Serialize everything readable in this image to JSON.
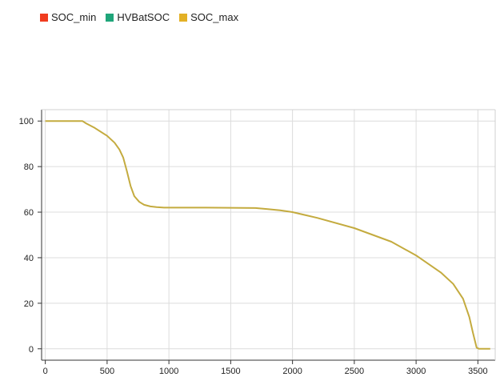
{
  "legend": [
    {
      "label": "SOC_min",
      "color": "#f03c1f"
    },
    {
      "label": "HVBatSOC",
      "color": "#1fa57a"
    },
    {
      "label": "SOC_max",
      "color": "#e3b126"
    }
  ],
  "chart_data": {
    "type": "line",
    "xlim": [
      -30,
      3640
    ],
    "ylim": [
      -5,
      105
    ],
    "x_ticks": [
      0,
      500,
      1000,
      1500,
      2000,
      2500,
      3000,
      3500
    ],
    "y_ticks": [
      0,
      20,
      40,
      60,
      80,
      100
    ],
    "grid": true,
    "legend_position": "top-left",
    "line_color": "#c4ab3f",
    "series": [
      {
        "name": "SOC_max",
        "x": [
          0,
          300,
          330,
          400,
          500,
          560,
          600,
          630,
          660,
          690,
          720,
          760,
          800,
          850,
          900,
          960,
          1000,
          1300,
          1700,
          1800,
          1900,
          2000,
          2200,
          2500,
          2800,
          3000,
          3200,
          3300,
          3380,
          3430,
          3460,
          3490,
          3510,
          3600
        ],
        "values": [
          100,
          100,
          99,
          97,
          93.5,
          90.5,
          87.5,
          84,
          78,
          71.5,
          67,
          64.5,
          63.2,
          62.5,
          62.2,
          62,
          62,
          62,
          61.8,
          61.3,
          60.8,
          60,
          57.5,
          53,
          47,
          41,
          33.5,
          28.5,
          22,
          14,
          7,
          0.5,
          0,
          0
        ]
      }
    ]
  }
}
